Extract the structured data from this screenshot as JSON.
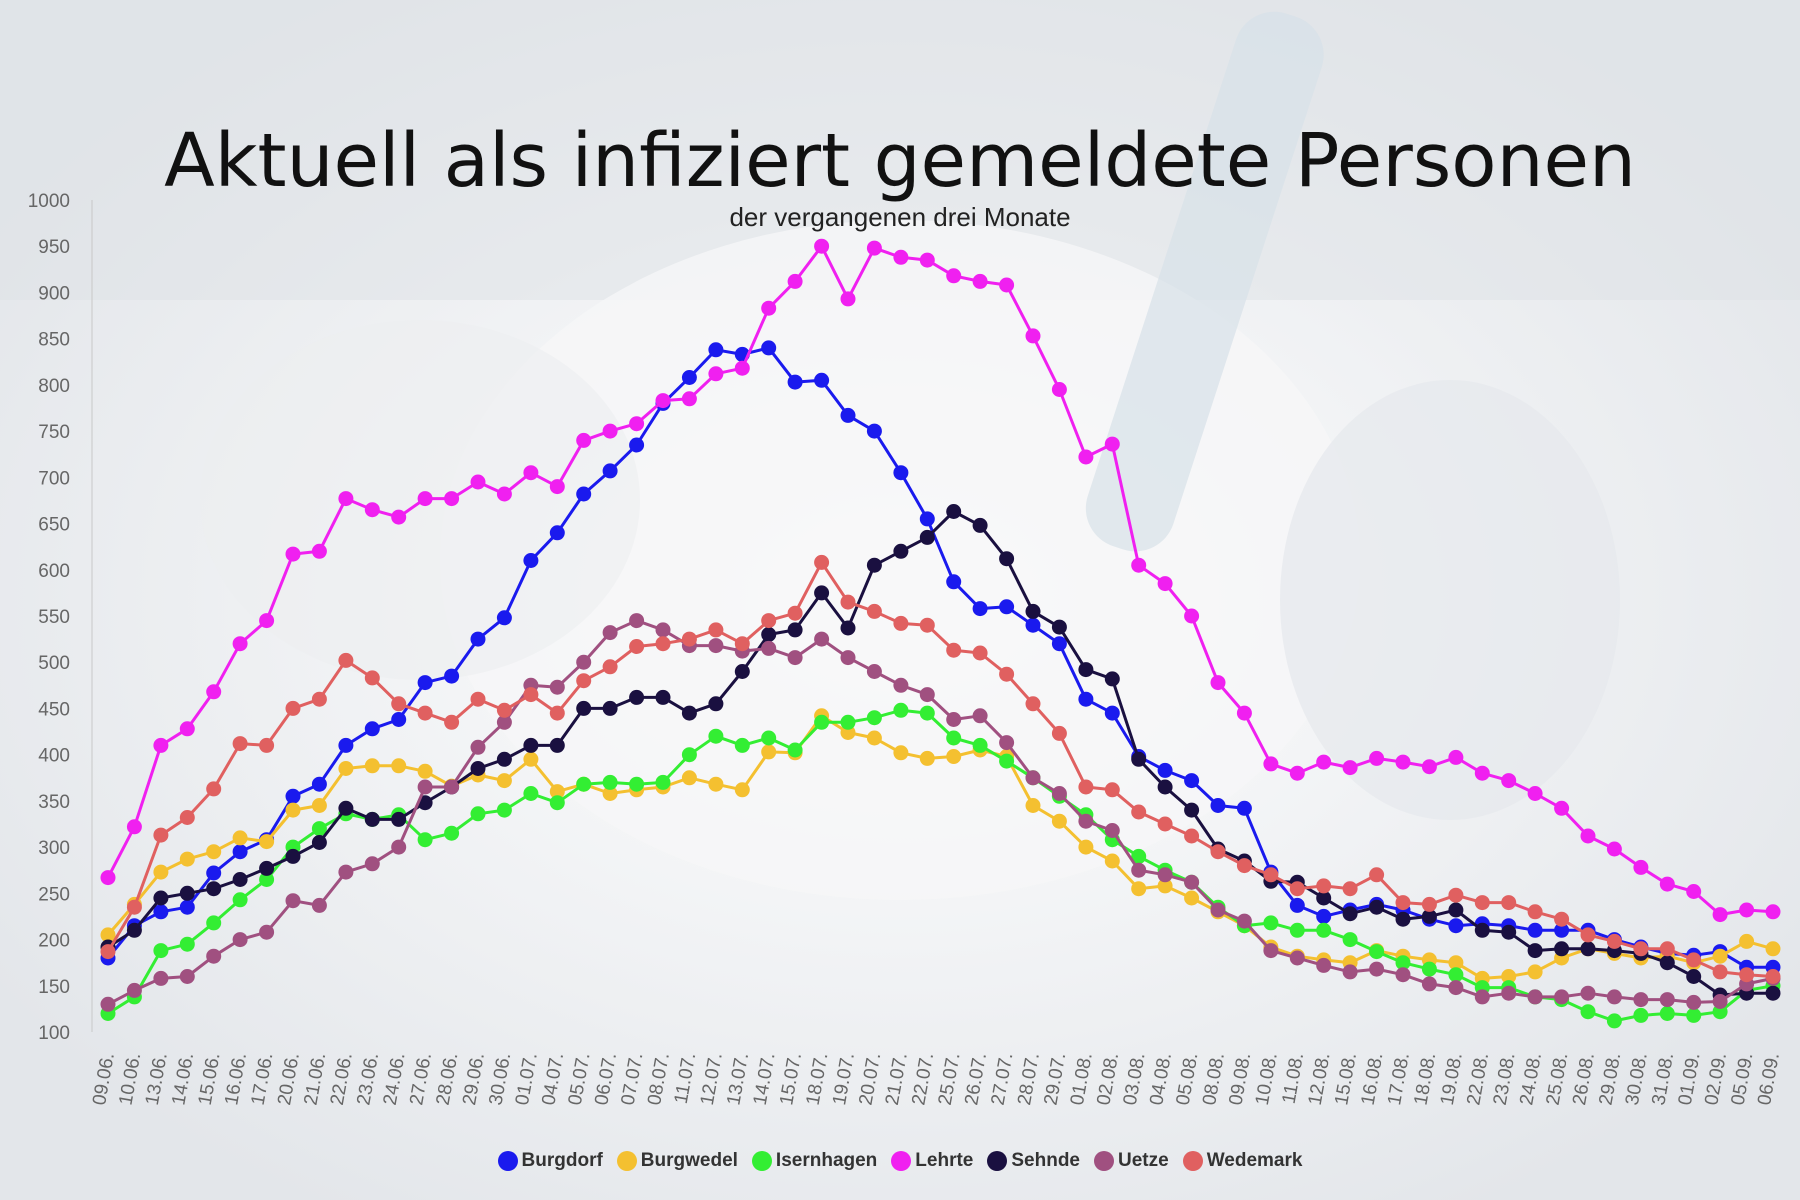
{
  "header": {
    "title": "Aktuell als infiziert gemeldete Personen",
    "subtitle": "der vergangenen drei Monate"
  },
  "chart_data": {
    "type": "line",
    "ylim": [
      100,
      1000
    ],
    "yticks": [
      100,
      150,
      200,
      250,
      300,
      350,
      400,
      450,
      500,
      550,
      600,
      650,
      700,
      750,
      800,
      850,
      900,
      950,
      1000
    ],
    "grid": false,
    "legend_position": "bottom",
    "x": [
      "09.06.",
      "10.06.",
      "13.06.",
      "14.06.",
      "15.06.",
      "16.06.",
      "17.06.",
      "20.06.",
      "21.06.",
      "22.06.",
      "23.06.",
      "24.06.",
      "27.06.",
      "28.06.",
      "29.06.",
      "30.06.",
      "01.07.",
      "04.07.",
      "05.07.",
      "06.07.",
      "07.07.",
      "08.07.",
      "11.07.",
      "12.07.",
      "13.07.",
      "14.07.",
      "15.07.",
      "18.07.",
      "19.07.",
      "20.07.",
      "21.07.",
      "22.07.",
      "25.07.",
      "26.07.",
      "27.07.",
      "28.07.",
      "29.07.",
      "01.08.",
      "02.08.",
      "03.08.",
      "04.08.",
      "05.08.",
      "08.08.",
      "09.08.",
      "10.08.",
      "11.08.",
      "12.08.",
      "15.08.",
      "16.08.",
      "17.08.",
      "18.08.",
      "19.08.",
      "22.08.",
      "23.08.",
      "24.08.",
      "25.08.",
      "26.08.",
      "29.08.",
      "30.08.",
      "31.08.",
      "01.09.",
      "02.09.",
      "05.09.",
      "06.09."
    ],
    "series": [
      {
        "name": "Burgdorf",
        "color": "#1a1aee",
        "values": [
          180,
          215,
          230,
          235,
          272,
          295,
          308,
          355,
          368,
          410,
          428,
          438,
          478,
          485,
          525,
          548,
          610,
          640,
          682,
          707,
          735,
          780,
          808,
          838,
          833,
          840,
          803,
          805,
          767,
          750,
          705,
          655,
          587,
          558,
          560,
          540,
          520,
          460,
          445,
          398,
          383,
          372,
          345,
          342,
          273,
          237,
          225,
          232,
          238,
          232,
          222,
          215,
          217,
          215,
          210,
          210,
          210,
          200,
          192,
          185,
          183,
          187,
          170,
          170
        ]
      },
      {
        "name": "Burgwedel",
        "color": "#f4c030",
        "values": [
          205,
          238,
          273,
          287,
          295,
          310,
          306,
          340,
          345,
          385,
          388,
          388,
          382,
          366,
          378,
          372,
          395,
          360,
          368,
          358,
          362,
          365,
          375,
          368,
          362,
          403,
          402,
          442,
          424,
          418,
          402,
          396,
          398,
          405,
          398,
          345,
          328,
          300,
          285,
          255,
          258,
          245,
          230,
          215,
          192,
          182,
          178,
          175,
          188,
          182,
          178,
          175,
          158,
          160,
          165,
          180,
          190,
          185,
          180,
          182,
          175,
          182,
          198,
          190
        ]
      },
      {
        "name": "Isernhagen",
        "color": "#33ee33",
        "values": [
          120,
          138,
          188,
          195,
          218,
          243,
          265,
          300,
          320,
          336,
          330,
          335,
          308,
          315,
          336,
          340,
          358,
          348,
          368,
          370,
          368,
          370,
          400,
          420,
          410,
          418,
          405,
          435,
          435,
          440,
          448,
          445,
          418,
          410,
          393,
          375,
          355,
          335,
          308,
          290,
          275,
          262,
          235,
          215,
          218,
          210,
          210,
          200,
          187,
          175,
          168,
          162,
          148,
          148,
          138,
          135,
          122,
          112,
          118,
          120,
          118,
          122,
          145,
          150
        ]
      },
      {
        "name": "Lehrte",
        "color": "#f020f0",
        "values": [
          267,
          322,
          410,
          428,
          468,
          520,
          545,
          617,
          620,
          677,
          665,
          657,
          677,
          677,
          695,
          682,
          705,
          690,
          740,
          750,
          758,
          783,
          785,
          812,
          818,
          883,
          912,
          950,
          893,
          948,
          938,
          935,
          918,
          912,
          908,
          853,
          795,
          722,
          736,
          605,
          585,
          550,
          478,
          445,
          390,
          380,
          392,
          386,
          396,
          392,
          387,
          397,
          380,
          372,
          358,
          342,
          312,
          298,
          278,
          260,
          252,
          227,
          232,
          230
        ]
      },
      {
        "name": "Sehnde",
        "color": "#1a1040",
        "values": [
          192,
          210,
          245,
          250,
          255,
          265,
          277,
          290,
          305,
          342,
          330,
          330,
          348,
          365,
          385,
          395,
          410,
          410,
          450,
          450,
          462,
          462,
          445,
          455,
          490,
          530,
          535,
          575,
          537,
          605,
          620,
          635,
          663,
          648,
          612,
          555,
          538,
          492,
          482,
          395,
          365,
          340,
          298,
          285,
          263,
          262,
          245,
          228,
          235,
          222,
          225,
          232,
          210,
          208,
          188,
          190,
          190,
          188,
          185,
          175,
          160,
          140,
          142,
          142
        ]
      },
      {
        "name": "Uetze",
        "color": "#a05080",
        "values": [
          130,
          145,
          158,
          160,
          182,
          200,
          208,
          242,
          237,
          273,
          282,
          300,
          365,
          365,
          408,
          435,
          475,
          473,
          500,
          532,
          545,
          535,
          518,
          518,
          512,
          515,
          505,
          525,
          505,
          490,
          475,
          465,
          438,
          442,
          413,
          375,
          358,
          328,
          318,
          275,
          270,
          262,
          232,
          220,
          188,
          180,
          172,
          165,
          168,
          162,
          152,
          148,
          138,
          142,
          138,
          138,
          142,
          138,
          135,
          135,
          132,
          133,
          152,
          158
        ]
      },
      {
        "name": "Wedemark",
        "color": "#e06060",
        "values": [
          187,
          235,
          313,
          332,
          363,
          412,
          410,
          450,
          460,
          502,
          483,
          455,
          445,
          435,
          460,
          448,
          465,
          445,
          480,
          495,
          517,
          520,
          525,
          535,
          520,
          545,
          553,
          608,
          565,
          555,
          542,
          540,
          513,
          510,
          487,
          455,
          423,
          365,
          362,
          338,
          325,
          312,
          295,
          280,
          270,
          255,
          258,
          255,
          270,
          240,
          238,
          248,
          240,
          240,
          230,
          222,
          205,
          198,
          190,
          190,
          178,
          165,
          162,
          160
        ]
      }
    ]
  }
}
